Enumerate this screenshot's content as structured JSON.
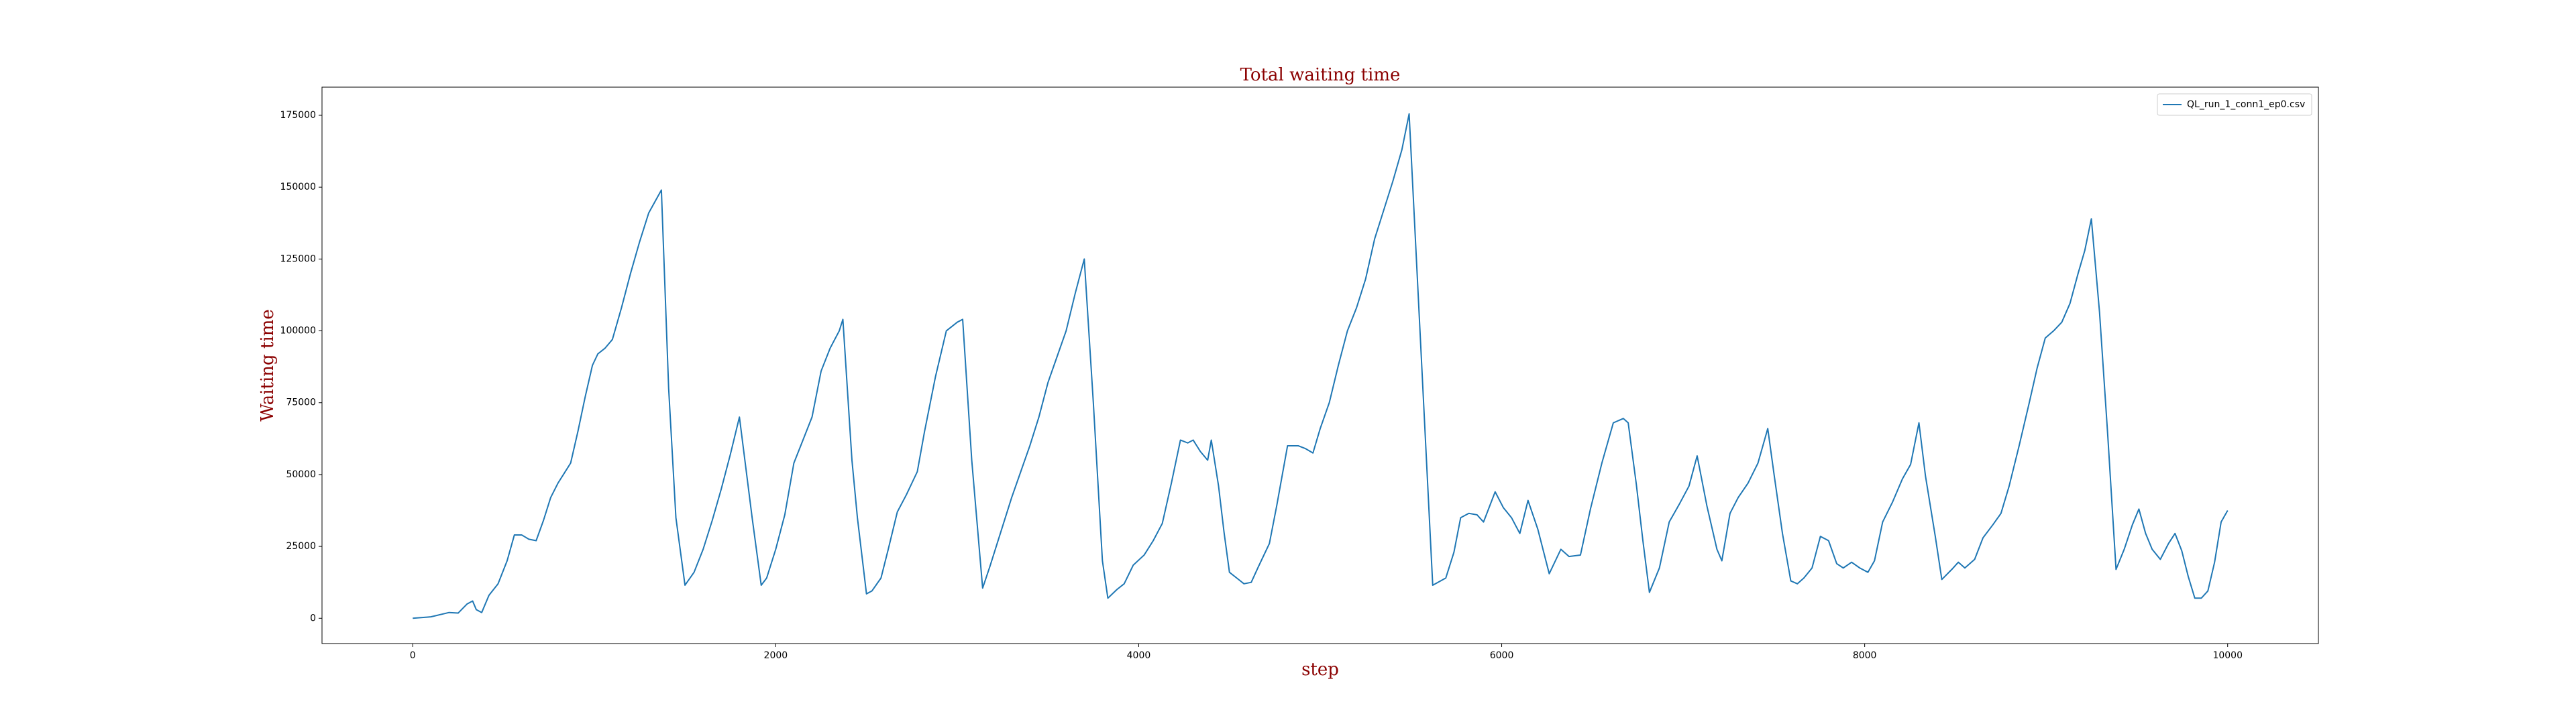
{
  "chart_data": {
    "type": "line",
    "title": "Total waiting time",
    "x_label": "step",
    "y_label": "Waiting time",
    "x": [
      0,
      100,
      200,
      250,
      300,
      330,
      350,
      380,
      420,
      470,
      520,
      560,
      600,
      640,
      680,
      720,
      760,
      800,
      830,
      870,
      910,
      950,
      990,
      1020,
      1060,
      1100,
      1150,
      1200,
      1250,
      1300,
      1370,
      1410,
      1450,
      1500,
      1550,
      1600,
      1650,
      1700,
      1750,
      1800,
      1830,
      1870,
      1920,
      1950,
      2000,
      2050,
      2100,
      2150,
      2200,
      2250,
      2300,
      2350,
      2370,
      2420,
      2450,
      2500,
      2530,
      2580,
      2620,
      2670,
      2720,
      2780,
      2820,
      2880,
      2940,
      3000,
      3030,
      3080,
      3140,
      3180,
      3250,
      3300,
      3350,
      3400,
      3450,
      3500,
      3550,
      3600,
      3650,
      3700,
      3750,
      3800,
      3830,
      3880,
      3920,
      3970,
      4030,
      4080,
      4130,
      4180,
      4230,
      4270,
      4300,
      4340,
      4380,
      4400,
      4440,
      4470,
      4500,
      4550,
      4580,
      4620,
      4660,
      4720,
      4760,
      4820,
      4880,
      4920,
      4960,
      5000,
      5050,
      5100,
      5150,
      5200,
      5250,
      5300,
      5350,
      5400,
      5450,
      5490,
      5620,
      5692,
      5737,
      5774,
      5819,
      5864,
      5900,
      5964,
      6009,
      6054,
      6100,
      6145,
      6199,
      6262,
      6326,
      6371,
      6434,
      6489,
      6552,
      6615,
      6670,
      6697,
      6742,
      6778,
      6814,
      6869,
      6923,
      6977,
      7032,
      7077,
      7131,
      7186,
      7213,
      7258,
      7303,
      7357,
      7412,
      7466,
      7502,
      7547,
      7593,
      7629,
      7665,
      7710,
      7756,
      7801,
      7846,
      7882,
      7928,
      7973,
      8018,
      8054,
      8099,
      8154,
      8208,
      8253,
      8299,
      8335,
      8389,
      8425,
      8480,
      8516,
      8552,
      8606,
      8652,
      8706,
      8751,
      8796,
      8851,
      8905,
      8950,
      8995,
      9041,
      9086,
      9131,
      9176,
      9213,
      9249,
      9294,
      9339,
      9385,
      9430,
      9475,
      9511,
      9548,
      9584,
      9629,
      9674,
      9710,
      9747,
      9783,
      9819,
      9855,
      9891,
      9928,
      9964,
      10000
    ],
    "series": [
      {
        "name": "QL_run_1_conn1_ep0.csv",
        "color": "#1f77b4",
        "values": [
          0,
          500,
          2000,
          1800,
          5000,
          6000,
          3000,
          2000,
          8000,
          12000,
          20000,
          29000,
          29000,
          27500,
          27000,
          34000,
          42000,
          47000,
          50000,
          54000,
          65000,
          77000,
          88000,
          92000,
          94000,
          97000,
          108000,
          120000,
          131000,
          141000,
          149000,
          80000,
          35000,
          11500,
          16000,
          24000,
          34000,
          45000,
          57000,
          70000,
          55000,
          35000,
          11500,
          14000,
          24000,
          36000,
          54000,
          62000,
          70000,
          86000,
          94000,
          100000,
          104000,
          55000,
          35000,
          8500,
          9500,
          14000,
          24000,
          37000,
          43000,
          51000,
          65000,
          84000,
          100000,
          103000,
          104000,
          55000,
          10500,
          18000,
          32000,
          42000,
          51000,
          60000,
          70000,
          82000,
          91000,
          100000,
          113000,
          125000,
          75000,
          20000,
          7000,
          10000,
          12000,
          18500,
          22000,
          27000,
          33000,
          47000,
          62000,
          61000,
          62000,
          58000,
          55000,
          62000,
          46000,
          30000,
          16000,
          13500,
          12000,
          12500,
          18000,
          26000,
          39000,
          60000,
          60000,
          59000,
          57500,
          66000,
          75000,
          88000,
          100000,
          108000,
          118000,
          132000,
          142000,
          152000,
          163000,
          175500,
          11500,
          14000,
          23000,
          35000,
          36500,
          36000,
          33500,
          44000,
          38500,
          35000,
          29500,
          41000,
          31000,
          15500,
          24000,
          21500,
          22000,
          38000,
          54000,
          68000,
          69500,
          68000,
          46500,
          27000,
          9000,
          17500,
          33500,
          39500,
          46000,
          56500,
          39000,
          24000,
          20000,
          36500,
          42000,
          47000,
          54000,
          66000,
          49500,
          29500,
          13000,
          12000,
          14000,
          17500,
          28500,
          27000,
          19000,
          17500,
          19500,
          17500,
          16000,
          20000,
          33500,
          40500,
          48500,
          53500,
          68000,
          49500,
          28500,
          13500,
          17000,
          19500,
          17500,
          20500,
          28000,
          32500,
          36500,
          46000,
          60000,
          74500,
          87000,
          97500,
          100000,
          103000,
          109500,
          120000,
          128000,
          139000,
          106500,
          64000,
          17000,
          24000,
          32500,
          38000,
          29500,
          24000,
          20500,
          26000,
          29500,
          23500,
          14500,
          7000,
          7000,
          9500,
          19500,
          33500,
          37500
        ]
      }
    ],
    "xlim": [
      -500,
      10500
    ],
    "ylim": [
      -8800,
      184800
    ],
    "xticks": [
      0,
      2000,
      4000,
      6000,
      8000,
      10000
    ],
    "yticks": [
      0,
      25000,
      50000,
      75000,
      100000,
      125000,
      150000,
      175000
    ],
    "legend": "upper right"
  }
}
